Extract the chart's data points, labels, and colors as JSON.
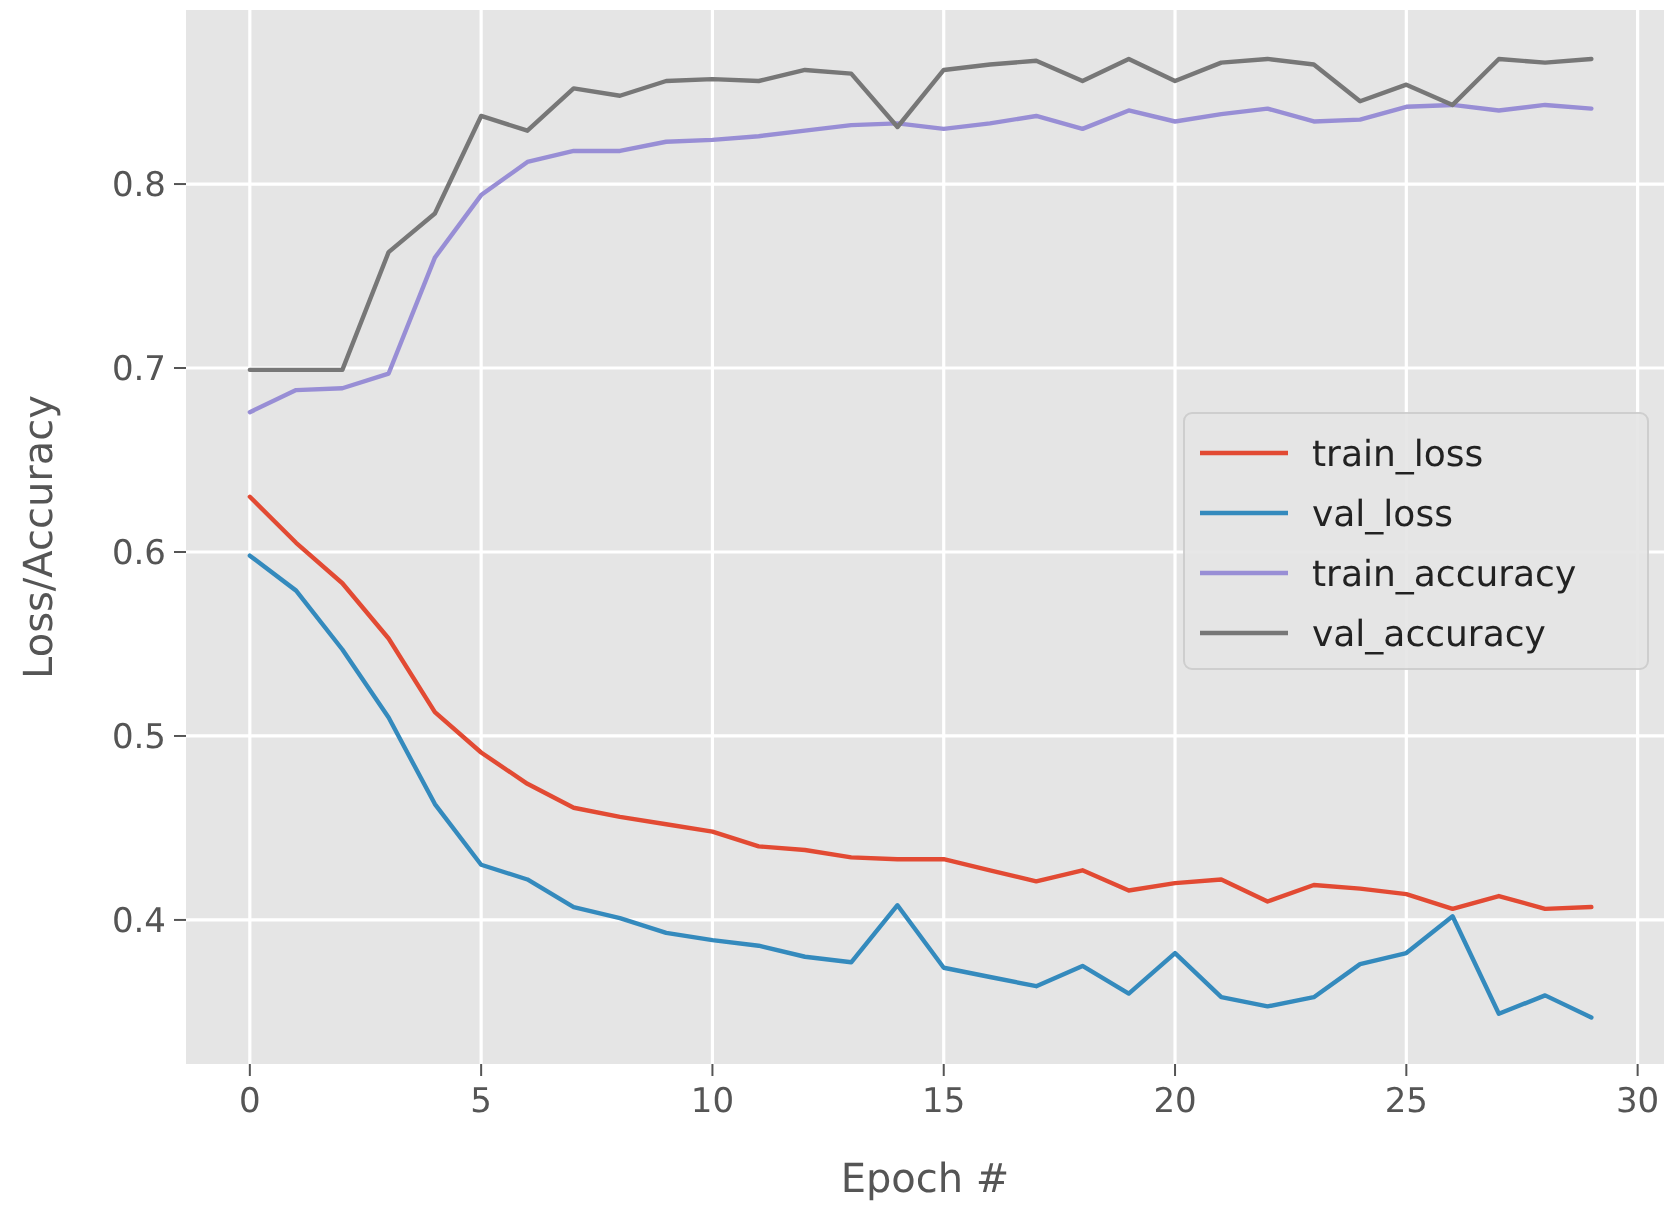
{
  "chart_data": {
    "type": "line",
    "xlabel": "Epoch #",
    "ylabel": "Loss/Accuracy",
    "x": [
      0,
      1,
      2,
      3,
      4,
      5,
      6,
      7,
      8,
      9,
      10,
      11,
      12,
      13,
      14,
      15,
      16,
      17,
      18,
      19,
      20,
      21,
      22,
      23,
      24,
      25,
      26,
      27,
      28,
      29
    ],
    "series": [
      {
        "name": "train_loss",
        "color": "#e24a33",
        "values": [
          0.63,
          0.605,
          0.583,
          0.553,
          0.513,
          0.491,
          0.474,
          0.461,
          0.456,
          0.452,
          0.448,
          0.44,
          0.438,
          0.434,
          0.433,
          0.433,
          0.427,
          0.421,
          0.427,
          0.416,
          0.42,
          0.422,
          0.41,
          0.419,
          0.417,
          0.414,
          0.406,
          0.413,
          0.406,
          0.407
        ]
      },
      {
        "name": "val_loss",
        "color": "#348abd",
        "values": [
          0.598,
          0.579,
          0.547,
          0.51,
          0.463,
          0.43,
          0.422,
          0.407,
          0.401,
          0.393,
          0.389,
          0.386,
          0.38,
          0.377,
          0.408,
          0.374,
          0.369,
          0.364,
          0.375,
          0.36,
          0.382,
          0.358,
          0.353,
          0.358,
          0.376,
          0.382,
          0.402,
          0.349,
          0.359,
          0.347
        ]
      },
      {
        "name": "train_accuracy",
        "color": "#988ed5",
        "values": [
          0.676,
          0.688,
          0.689,
          0.697,
          0.76,
          0.794,
          0.812,
          0.818,
          0.818,
          0.823,
          0.824,
          0.826,
          0.829,
          0.832,
          0.833,
          0.83,
          0.833,
          0.837,
          0.83,
          0.84,
          0.834,
          0.838,
          0.841,
          0.834,
          0.835,
          0.842,
          0.843,
          0.84,
          0.843,
          0.841
        ]
      },
      {
        "name": "val_accuracy",
        "color": "#777777",
        "values": [
          0.699,
          0.699,
          0.699,
          0.763,
          0.784,
          0.837,
          0.829,
          0.852,
          0.848,
          0.856,
          0.857,
          0.856,
          0.862,
          0.86,
          0.831,
          0.862,
          0.865,
          0.867,
          0.856,
          0.868,
          0.856,
          0.866,
          0.868,
          0.865,
          0.845,
          0.854,
          0.843,
          0.868,
          0.866,
          0.868
        ]
      }
    ],
    "xlim": [
      -1.38,
      30.57
    ],
    "ylim": [
      0.3217,
      0.8946
    ],
    "xticks": [
      0,
      5,
      10,
      15,
      20,
      25,
      30
    ],
    "yticks": [
      0.4,
      0.5,
      0.6,
      0.7,
      0.8
    ],
    "grid": true,
    "legend": "right",
    "line_style": "solid",
    "marker": "none"
  }
}
